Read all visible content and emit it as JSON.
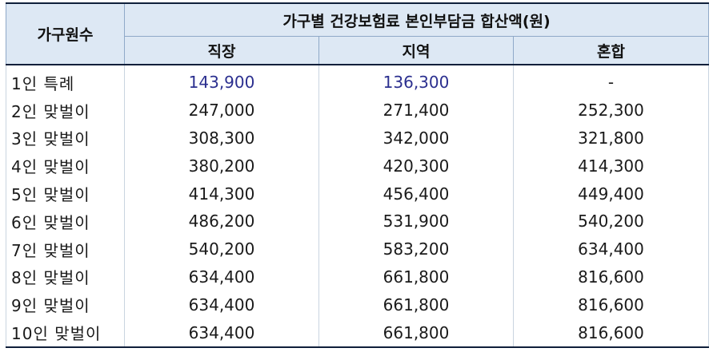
{
  "table": {
    "corner_header": "가구원수",
    "group_header": "가구별 건강보험료 본인부담금 합산액(원)",
    "columns": [
      "직장",
      "지역",
      "혼합"
    ],
    "rows": [
      {
        "label": "1인 특례",
        "cells": [
          "143,900",
          "136,300",
          "-"
        ]
      },
      {
        "label": "2인 맞벌이",
        "cells": [
          "247,000",
          "271,400",
          "252,300"
        ]
      },
      {
        "label": "3인 맞벌이",
        "cells": [
          "308,300",
          "342,000",
          "321,800"
        ]
      },
      {
        "label": "4인 맞벌이",
        "cells": [
          "380,200",
          "420,300",
          "414,300"
        ]
      },
      {
        "label": "5인 맞벌이",
        "cells": [
          "414,300",
          "456,400",
          "449,400"
        ]
      },
      {
        "label": "6인 맞벌이",
        "cells": [
          "486,200",
          "531,900",
          "540,200"
        ]
      },
      {
        "label": "7인 맞벌이",
        "cells": [
          "540,200",
          "583,200",
          "634,400"
        ]
      },
      {
        "label": "8인 맞벌이",
        "cells": [
          "634,400",
          "661,800",
          "816,600"
        ]
      },
      {
        "label": "9인 맞벌이",
        "cells": [
          "634,400",
          "661,800",
          "816,600"
        ]
      },
      {
        "label": "10인 맞벌이",
        "cells": [
          "634,400",
          "661,800",
          "816,600"
        ]
      }
    ]
  },
  "colors": {
    "header_bg": "#dde8f4",
    "highlight_text": "#2b2f8f",
    "rule": "#0f1f3a"
  }
}
